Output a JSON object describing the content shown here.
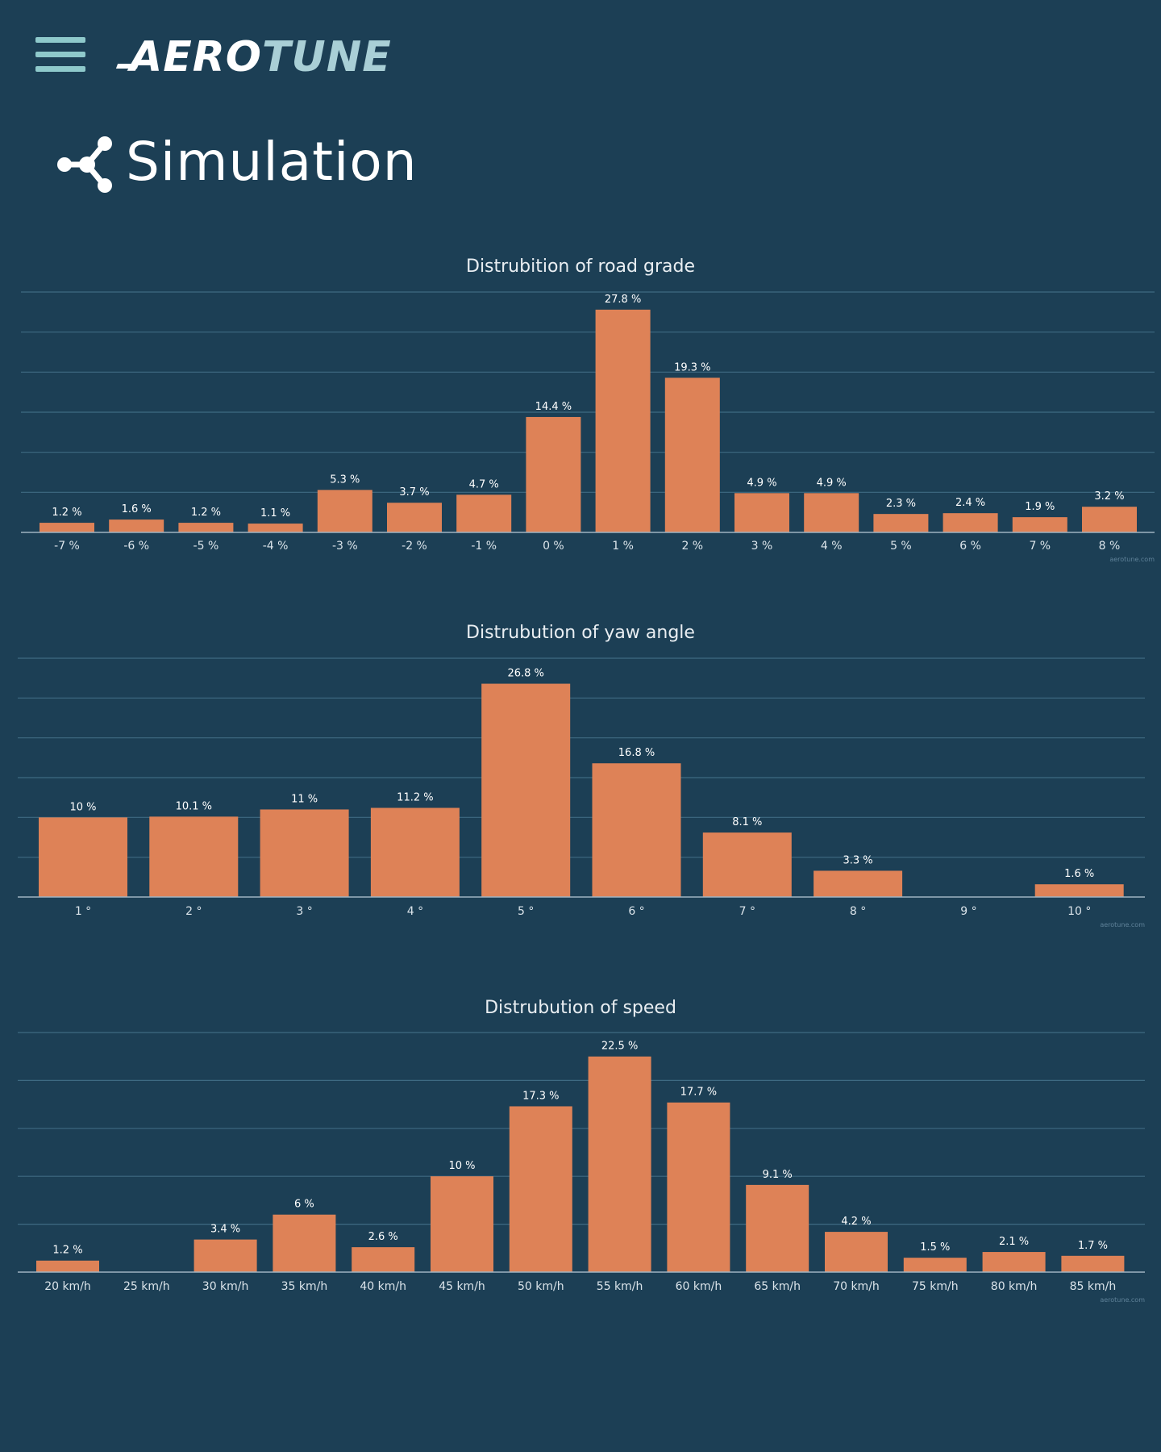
{
  "header": {
    "menu_icon": "hamburger-menu-icon",
    "logo_part_a": "AERO",
    "logo_part_b": "TUNE",
    "page_icon": "share-nodes-icon",
    "page_title": "Simulation"
  },
  "colors": {
    "background": "#1c3f55",
    "bar": "#de8257",
    "grid": "#3e6a82",
    "axis": "#9fb4c2",
    "menu": "#8ec9cb",
    "logo_accent": "#a9cfd6"
  },
  "chart_data": [
    {
      "type": "bar",
      "title": "Distrubition of road grade",
      "categories": [
        "-7 %",
        "-6 %",
        "-5 %",
        "-4 %",
        "-3 %",
        "-2 %",
        "-1 %",
        "0 %",
        "1 %",
        "2 %",
        "3 %",
        "4 %",
        "5 %",
        "6 %",
        "7 %",
        "8 %"
      ],
      "values": [
        1.2,
        1.6,
        1.2,
        1.1,
        5.3,
        3.7,
        4.7,
        14.4,
        27.8,
        19.3,
        4.9,
        4.9,
        2.3,
        2.4,
        1.9,
        3.2
      ],
      "value_labels": [
        "1.2 %",
        "1.6 %",
        "1.2 %",
        "1.1 %",
        "5.3 %",
        "3.7 %",
        "4.7 %",
        "14.4 %",
        "27.8 %",
        "19.3 %",
        "4.9 %",
        "4.9 %",
        "2.3 %",
        "2.4 %",
        "1.9 %",
        "3.2 %"
      ],
      "ylim": [
        0,
        30
      ],
      "gridlines": [
        5,
        10,
        15,
        20,
        25,
        30
      ],
      "watermark": "aerotune.com"
    },
    {
      "type": "bar",
      "title": "Distrubution of yaw angle",
      "categories": [
        "1 °",
        "2 °",
        "3 °",
        "4 °",
        "5 °",
        "6 °",
        "7 °",
        "8 °",
        "9 °",
        "10 °"
      ],
      "values": [
        10,
        10.1,
        11,
        11.2,
        26.8,
        16.8,
        8.1,
        3.3,
        0,
        1.6
      ],
      "value_labels": [
        "10 %",
        "10.1 %",
        "11 %",
        "11.2 %",
        "26.8 %",
        "16.8 %",
        "8.1 %",
        "3.3 %",
        "",
        "1.6 %"
      ],
      "ylim": [
        0,
        30
      ],
      "gridlines": [
        5,
        10,
        15,
        20,
        25,
        30
      ],
      "watermark": "aerotune.com"
    },
    {
      "type": "bar",
      "title": "Distrubution of speed",
      "categories": [
        "20 km/h",
        "25 km/h",
        "30 km/h",
        "35 km/h",
        "40 km/h",
        "45 km/h",
        "50 km/h",
        "55 km/h",
        "60 km/h",
        "65 km/h",
        "70 km/h",
        "75 km/h",
        "80 km/h",
        "85 km/h"
      ],
      "values": [
        1.2,
        0,
        3.4,
        6,
        2.6,
        10,
        17.3,
        22.5,
        17.7,
        9.1,
        4.2,
        1.5,
        2.1,
        1.7
      ],
      "value_labels": [
        "1.2 %",
        "",
        "3.4 %",
        "6 %",
        "2.6 %",
        "10 %",
        "17.3 %",
        "22.5 %",
        "17.7 %",
        "9.1 %",
        "4.2 %",
        "1.5 %",
        "2.1 %",
        "1.7 %"
      ],
      "ylim": [
        0,
        25
      ],
      "gridlines": [
        5,
        10,
        15,
        20,
        25
      ],
      "watermark": "aerotune.com"
    }
  ]
}
